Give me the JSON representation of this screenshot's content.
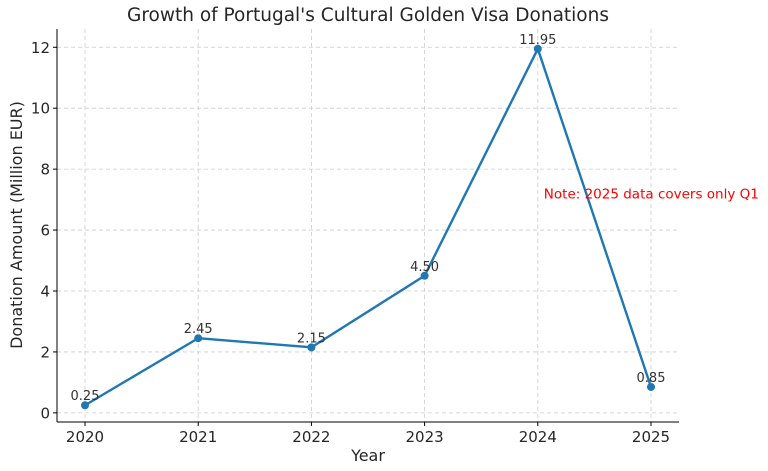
{
  "colors": {
    "line": "#1f77b4",
    "note": "#ff0000",
    "grid": "#cccccc"
  },
  "chart_data": {
    "type": "line",
    "title": "Growth of Portugal's Cultural Golden Visa Donations",
    "xlabel": "Year",
    "ylabel": "Donation Amount (Million EUR)",
    "x": [
      "2020",
      "2021",
      "2022",
      "2023",
      "2024",
      "2025"
    ],
    "series": [
      {
        "values": [
          0.25,
          2.45,
          2.15,
          4.5,
          11.95,
          0.85
        ]
      }
    ],
    "data_labels": [
      "0.25",
      "2.45",
      "2.15",
      "4.50",
      "11.95",
      "0.85"
    ],
    "yticks": [
      0,
      2,
      4,
      6,
      8,
      10,
      12
    ],
    "ylim": [
      -0.3,
      12.6
    ],
    "grid": true,
    "annotations": [
      {
        "text": "Note: 2025 data covers only Q1",
        "x": "2024",
        "y": 7.2
      }
    ]
  }
}
